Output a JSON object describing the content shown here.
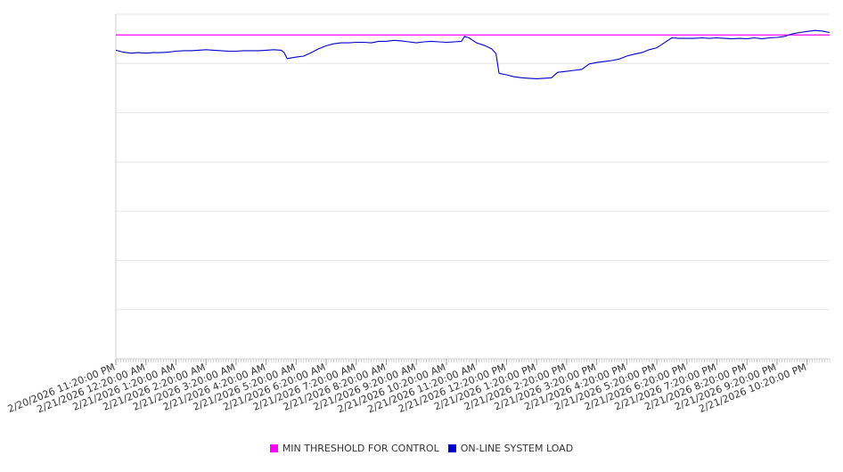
{
  "chart_data": {
    "type": "line",
    "title": "",
    "xlabel": "",
    "ylabel": "",
    "x_tick_labels": [
      "2/20/2026 11:20:00 PM",
      "2/21/2026 12:20:00 AM",
      "2/21/2026 1:20:00 AM",
      "2/21/2026 2:20:00 AM",
      "2/21/2026 3:20:00 AM",
      "2/21/2026 4:20:00 AM",
      "2/21/2026 5:20:00 AM",
      "2/21/2026 6:20:00 AM",
      "2/21/2026 7:20:00 AM",
      "2/21/2026 8:20:00 AM",
      "2/21/2026 9:20:00 AM",
      "2/21/2026 10:20:00 AM",
      "2/21/2026 11:20:00 AM",
      "2/21/2026 12:20:00 PM",
      "2/21/2026 1:20:00 PM",
      "2/21/2026 2:20:00 PM",
      "2/21/2026 3:20:00 PM",
      "2/21/2026 4:20:00 PM",
      "2/21/2026 5:20:00 PM",
      "2/21/2026 6:20:00 PM",
      "2/21/2026 7:20:00 PM",
      "2/21/2026 8:20:00 PM",
      "2/21/2026 9:20:00 PM",
      "2/21/2026 10:20:00 PM"
    ],
    "x_range_hours": [
      0,
      23.75
    ],
    "ylim": [
      0,
      7
    ],
    "y_gridlines": 7,
    "y_tick_labels_visible": false,
    "grid": true,
    "legend_position": "bottom-center",
    "series": [
      {
        "name": "MIN THRESHOLD FOR CONTROL",
        "color": "#ff00ff",
        "kind": "constant",
        "value": 6.58
      },
      {
        "name": "ON-LINE SYSTEM LOAD",
        "color": "#0000cc",
        "kind": "line",
        "points": [
          [
            0.0,
            6.27
          ],
          [
            0.25,
            6.23
          ],
          [
            0.5,
            6.21
          ],
          [
            0.75,
            6.22
          ],
          [
            1.0,
            6.21
          ],
          [
            1.25,
            6.22
          ],
          [
            1.5,
            6.22
          ],
          [
            1.75,
            6.23
          ],
          [
            2.0,
            6.25
          ],
          [
            2.25,
            6.26
          ],
          [
            2.5,
            6.26
          ],
          [
            2.75,
            6.27
          ],
          [
            3.0,
            6.28
          ],
          [
            3.25,
            6.27
          ],
          [
            3.5,
            6.26
          ],
          [
            3.75,
            6.25
          ],
          [
            4.0,
            6.25
          ],
          [
            4.25,
            6.26
          ],
          [
            4.5,
            6.26
          ],
          [
            4.75,
            6.26
          ],
          [
            5.0,
            6.27
          ],
          [
            5.25,
            6.28
          ],
          [
            5.5,
            6.27
          ],
          [
            5.6,
            6.22
          ],
          [
            5.7,
            6.1
          ],
          [
            6.0,
            6.13
          ],
          [
            6.25,
            6.15
          ],
          [
            6.5,
            6.22
          ],
          [
            6.75,
            6.3
          ],
          [
            7.0,
            6.36
          ],
          [
            7.25,
            6.4
          ],
          [
            7.5,
            6.42
          ],
          [
            7.75,
            6.42
          ],
          [
            8.0,
            6.43
          ],
          [
            8.25,
            6.43
          ],
          [
            8.5,
            6.42
          ],
          [
            8.75,
            6.45
          ],
          [
            9.0,
            6.45
          ],
          [
            9.25,
            6.47
          ],
          [
            9.5,
            6.46
          ],
          [
            9.75,
            6.44
          ],
          [
            10.0,
            6.42
          ],
          [
            10.25,
            6.44
          ],
          [
            10.5,
            6.45
          ],
          [
            10.75,
            6.44
          ],
          [
            11.0,
            6.43
          ],
          [
            11.25,
            6.44
          ],
          [
            11.5,
            6.45
          ],
          [
            11.6,
            6.55
          ],
          [
            11.75,
            6.52
          ],
          [
            12.0,
            6.42
          ],
          [
            12.25,
            6.37
          ],
          [
            12.5,
            6.3
          ],
          [
            12.65,
            6.2
          ],
          [
            12.75,
            5.8
          ],
          [
            13.0,
            5.77
          ],
          [
            13.25,
            5.73
          ],
          [
            13.5,
            5.71
          ],
          [
            13.75,
            5.7
          ],
          [
            14.0,
            5.69
          ],
          [
            14.25,
            5.7
          ],
          [
            14.5,
            5.71
          ],
          [
            14.7,
            5.82
          ],
          [
            15.0,
            5.84
          ],
          [
            15.25,
            5.86
          ],
          [
            15.5,
            5.88
          ],
          [
            15.75,
            5.99
          ],
          [
            16.0,
            6.02
          ],
          [
            16.25,
            6.04
          ],
          [
            16.5,
            6.06
          ],
          [
            16.75,
            6.09
          ],
          [
            17.0,
            6.15
          ],
          [
            17.25,
            6.19
          ],
          [
            17.5,
            6.22
          ],
          [
            17.75,
            6.28
          ],
          [
            18.0,
            6.32
          ],
          [
            18.25,
            6.42
          ],
          [
            18.5,
            6.52
          ],
          [
            18.75,
            6.51
          ],
          [
            19.0,
            6.51
          ],
          [
            19.25,
            6.51
          ],
          [
            19.5,
            6.52
          ],
          [
            19.75,
            6.51
          ],
          [
            20.0,
            6.52
          ],
          [
            20.25,
            6.51
          ],
          [
            20.5,
            6.5
          ],
          [
            20.75,
            6.51
          ],
          [
            21.0,
            6.5
          ],
          [
            21.25,
            6.52
          ],
          [
            21.5,
            6.5
          ],
          [
            21.75,
            6.52
          ],
          [
            22.0,
            6.53
          ],
          [
            22.25,
            6.55
          ],
          [
            22.5,
            6.6
          ],
          [
            22.75,
            6.63
          ],
          [
            23.0,
            6.65
          ],
          [
            23.25,
            6.67
          ],
          [
            23.5,
            6.66
          ],
          [
            23.75,
            6.63
          ]
        ]
      }
    ]
  }
}
